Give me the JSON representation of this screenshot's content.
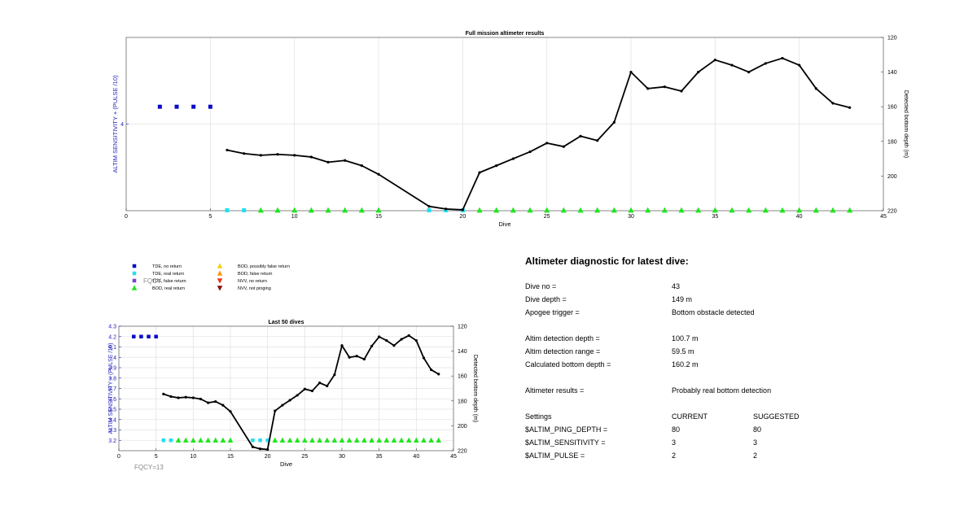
{
  "chart_data": [
    {
      "id": "full_mission",
      "type": "line",
      "title": "Full mission altimeter results",
      "xlabel": "Dive",
      "ylabel_left": "ALTIM SENSITIVITY + (PULSE /10)",
      "ylabel_right": "Detected bottom depth (m)",
      "xlim": [
        0,
        45
      ],
      "ylim_right": [
        120,
        220
      ],
      "right_reversed": true,
      "left_visible_range": [
        3,
        5
      ],
      "grid": true,
      "x_ticks": [
        0,
        5,
        10,
        15,
        20,
        25,
        30,
        35,
        40,
        45
      ],
      "right_ticks": [
        120,
        140,
        160,
        180,
        200,
        220
      ],
      "left_ticks": [
        4
      ],
      "bottom_depth": {
        "x": [
          6,
          7,
          8,
          9,
          10,
          11,
          12,
          13,
          14,
          15,
          18,
          19,
          20,
          21,
          22,
          23,
          24,
          25,
          26,
          27,
          28,
          29,
          30,
          31,
          32,
          33,
          34,
          35,
          36,
          37,
          38,
          39,
          40,
          41,
          42,
          43
        ],
        "y": [
          185,
          187,
          188,
          187.5,
          188,
          189,
          192,
          191,
          194,
          199,
          217.5,
          219,
          219.5,
          198,
          194,
          190,
          186,
          181,
          183,
          177,
          179.5,
          169,
          140,
          149.5,
          148.5,
          151,
          140,
          133,
          136,
          140,
          135,
          132,
          136,
          149.5,
          158,
          160.5
        ]
      },
      "settings_markers": {
        "x": [
          2,
          3,
          4,
          5
        ],
        "y": 4.2
      },
      "tde_real_return": {
        "x": [
          6,
          7,
          18,
          19,
          20
        ]
      },
      "bod_real_return": {
        "x": [
          8,
          9,
          10,
          11,
          12,
          13,
          14,
          15,
          21,
          22,
          23,
          24,
          25,
          26,
          27,
          28,
          29,
          30,
          31,
          32,
          33,
          34,
          35,
          36,
          37,
          38,
          39,
          40,
          41,
          42,
          43
        ]
      }
    },
    {
      "id": "last_50",
      "type": "line",
      "title": "Last 50 dives",
      "xlabel": "Dive",
      "ylabel_left": "ALTIM SENSITIVITY + (PULSE /10)",
      "ylabel_right": "Detected bottom depth (m)",
      "xlim": [
        0,
        45
      ],
      "ylim_left": [
        3.1,
        4.3
      ],
      "ylim_right": [
        120,
        220
      ],
      "right_reversed": true,
      "grid": true,
      "x_ticks": [
        0,
        5,
        10,
        15,
        20,
        25,
        30,
        35,
        40,
        45
      ],
      "left_ticks": [
        "3.2",
        "3.3",
        "3.4",
        "3.5",
        "3.6",
        "3.7",
        "3.8",
        "3.9",
        "4",
        "4.1",
        "4.2",
        "4.3"
      ],
      "right_ticks": [
        120,
        140,
        160,
        180,
        200,
        220
      ],
      "bottom_depth": {
        "x": [
          6,
          7,
          8,
          9,
          10,
          11,
          12,
          13,
          14,
          15,
          18,
          19,
          20,
          21,
          22,
          23,
          24,
          25,
          26,
          27,
          28,
          29,
          30,
          31,
          32,
          33,
          34,
          35,
          36,
          37,
          38,
          39,
          40,
          41,
          42,
          43
        ],
        "y": [
          174.5,
          176.5,
          177.5,
          177,
          177.5,
          178.5,
          181.5,
          180.5,
          183.5,
          188.5,
          217,
          218.5,
          219,
          188,
          183.5,
          179.5,
          175.5,
          170.5,
          172,
          165.5,
          168,
          159,
          135.5,
          145,
          144,
          146.5,
          136,
          128.5,
          131.5,
          135.5,
          130.5,
          127.5,
          131.5,
          145.5,
          155,
          158.5
        ]
      },
      "settings_markers": {
        "x": [
          2,
          3,
          4,
          5
        ],
        "y": 4.2
      },
      "tde_real_return": {
        "x": [
          6,
          7,
          18,
          19,
          20
        ]
      },
      "bod_real_return": {
        "x": [
          8,
          9,
          10,
          11,
          12,
          13,
          14,
          15,
          21,
          22,
          23,
          24,
          25,
          26,
          27,
          28,
          29,
          30,
          31,
          32,
          33,
          34,
          35,
          36,
          37,
          38,
          39,
          40,
          41,
          42,
          43
        ]
      },
      "footnote": "FQCY=13"
    }
  ],
  "legend": {
    "items": [
      {
        "label": "TDE, no return",
        "marker": "square",
        "color": "#0a0ac8"
      },
      {
        "label": "TDE, real return",
        "marker": "square",
        "color": "#22e0f0"
      },
      {
        "label": "TDE, false return",
        "marker": "square",
        "color": "#7b3fd8"
      },
      {
        "label": "BOD, real return",
        "marker": "triangle-up",
        "color": "#1fe61f"
      },
      {
        "label": "BOD, possibly false return",
        "marker": "triangle-up",
        "color": "#f2d21a"
      },
      {
        "label": "BOD, false return",
        "marker": "triangle-up",
        "color": "#f29a1a"
      },
      {
        "label": "NVV, no return",
        "marker": "triangle-down",
        "color": "#e83a14"
      },
      {
        "label": "NVV, not pinging",
        "marker": "triangle-down",
        "color": "#8a1010"
      }
    ],
    "overlap_text": "FQCY"
  },
  "colors": {
    "line": "#000000",
    "left_axis": "#2222bb",
    "grid": "#e3e3e3",
    "footnote": "#8a8a8a",
    "settings_marker": "#0a0ac8",
    "tde_real": "#22e0f0",
    "bod_real": "#1fe61f"
  },
  "diagnostic": {
    "title": "Altimeter diagnostic for latest dive:",
    "dive_no_label": "Dive no =",
    "dive_no_value": "43",
    "dive_depth_label": "Dive depth =",
    "dive_depth_value": "149 m",
    "apogee_label": "Apogee trigger =",
    "apogee_value": "Bottom obstacle detected",
    "detection_depth_label": "Altim detection depth =",
    "detection_depth_value": "100.7 m",
    "detection_range_label": "Altim detection range =",
    "detection_range_value": "59.5 m",
    "calc_bottom_label": "Calculated bottom depth =",
    "calc_bottom_value": "160.2 m",
    "results_label": "Altimeter results =",
    "results_value": "Probably real bottom detection",
    "settings_label": "Settings",
    "current_label": "CURRENT",
    "suggested_label": "SUGGESTED",
    "settings": [
      {
        "name": "$ALTIM_PING_DEPTH =",
        "current": "80",
        "suggested": "80"
      },
      {
        "name": "$ALTIM_SENSITIVITY =",
        "current": "3",
        "suggested": "3"
      },
      {
        "name": "$ALTIM_PULSE =",
        "current": "2",
        "suggested": "2"
      }
    ]
  }
}
